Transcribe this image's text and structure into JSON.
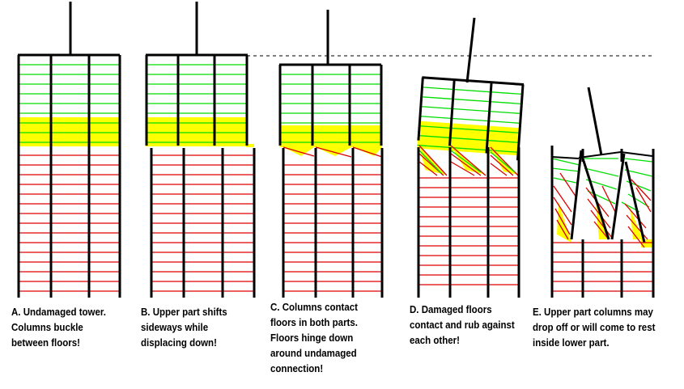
{
  "colors": {
    "upper_floor": "#00dd00",
    "lower_floor": "#dd0000",
    "damage_zone": "#ffff00",
    "column": "#000000",
    "reference_line": "#000000"
  },
  "stages": [
    {
      "id": "A",
      "caption_lines": [
        "A. Undamaged tower.",
        "Columns buckle",
        "between floors!"
      ]
    },
    {
      "id": "B",
      "caption_lines": [
        "B. Upper part shifts",
        "sideways while",
        "displacing down!"
      ]
    },
    {
      "id": "C",
      "caption_lines": [
        "C. Columns contact",
        "floors in both parts.",
        "Floors hinge down",
        "around undamaged",
        "connection!"
      ]
    },
    {
      "id": "D",
      "caption_lines": [
        "D. Damaged floors",
        "contact and rub against",
        "each other!"
      ]
    },
    {
      "id": "E",
      "caption_lines": [
        "E. Upper part columns may",
        "drop off or will come to rest",
        "inside lower part."
      ]
    }
  ]
}
